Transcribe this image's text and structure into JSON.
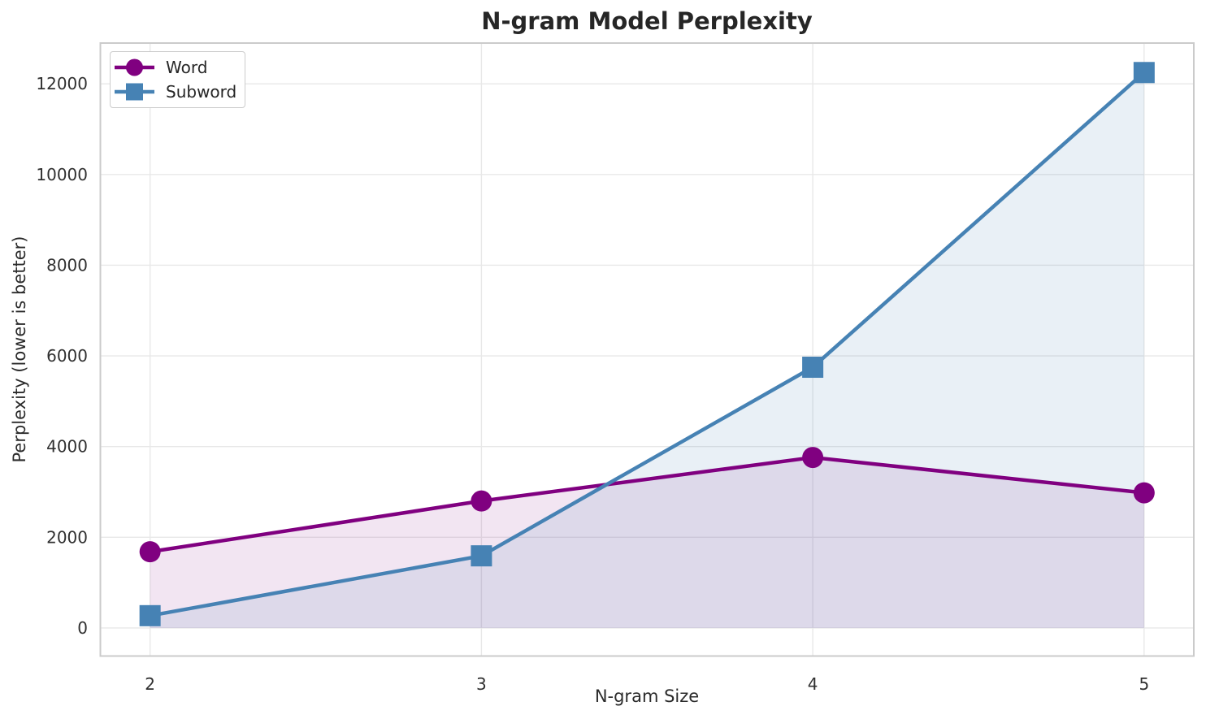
{
  "chart_data": {
    "type": "line",
    "title": "N-gram Model Perplexity",
    "xlabel": "N-gram Size",
    "ylabel": "Perplexity (lower is better)",
    "x": [
      2,
      3,
      4,
      5
    ],
    "series": [
      {
        "name": "Word",
        "marker": "circle",
        "color": "#800080",
        "fill_alpha": 0.1,
        "values": [
          1680,
          2800,
          3760,
          2980
        ]
      },
      {
        "name": "Subword",
        "marker": "square",
        "color": "#4682B4",
        "fill_alpha": 0.12,
        "values": [
          270,
          1590,
          5750,
          12250
        ]
      }
    ],
    "fill_to_baseline": 0,
    "xticks": [
      2,
      3,
      4,
      5
    ],
    "yticks": [
      0,
      2000,
      4000,
      6000,
      8000,
      10000,
      12000
    ],
    "xlim": [
      1.85,
      5.15
    ],
    "ylim": [
      -620,
      12900
    ],
    "grid": true,
    "legend": {
      "position": "upper-left",
      "entries": [
        "Word",
        "Subword"
      ]
    }
  },
  "style": {
    "grid_color": "#e8e8e8",
    "frame_color": "#cbcbcb",
    "background": "#ffffff",
    "text_color": "#2b2b2b"
  }
}
